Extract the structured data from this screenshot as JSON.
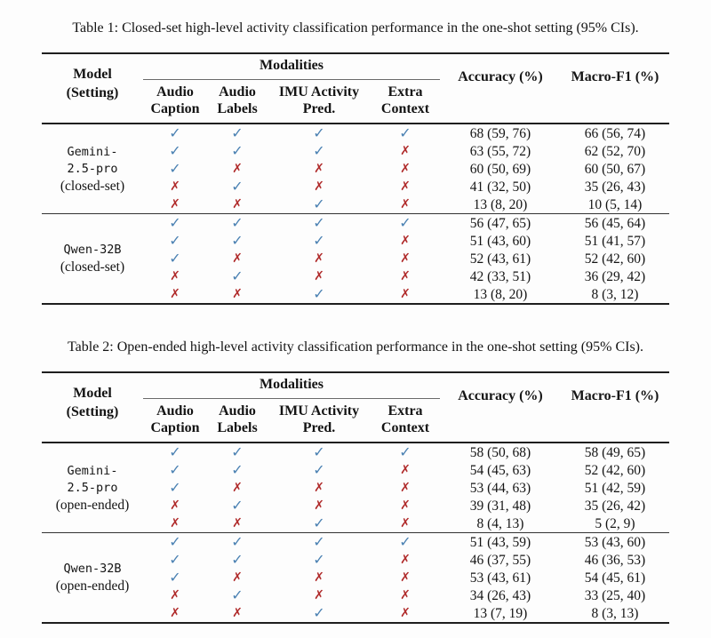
{
  "page": {
    "background": "#fdfdfd",
    "text_color": "#141414"
  },
  "colors": {
    "check": "#4a81b2",
    "cross": "#b02b2b",
    "rule_dark": "#1e1e1e",
    "rule_light": "#6a6a6a"
  },
  "marks": {
    "check": "✓",
    "cross": "✗"
  },
  "header": {
    "model": [
      "Model",
      "(Setting)"
    ],
    "modalities": "Modalities",
    "subcolumns": [
      [
        "Audio",
        "Caption"
      ],
      [
        "Audio",
        "Labels"
      ],
      [
        "IMU Activity",
        "Pred."
      ],
      [
        "Extra",
        "Context"
      ]
    ],
    "accuracy": "Accuracy (%)",
    "macro_f1": "Macro-F1 (%)"
  },
  "tables": [
    {
      "caption": "Table 1: Closed-set high-level activity classification performance in the one-shot setting (95% CIs).",
      "groups": [
        {
          "model_lines": [
            "Gemini-",
            "2.5-pro"
          ],
          "setting": "(closed-set)",
          "rows": [
            {
              "modalities": [
                true,
                true,
                true,
                true
              ],
              "accuracy": "68 (59, 76)",
              "macro_f1": "66 (56, 74)"
            },
            {
              "modalities": [
                true,
                true,
                true,
                false
              ],
              "accuracy": "63 (55, 72)",
              "macro_f1": "62 (52, 70)"
            },
            {
              "modalities": [
                true,
                false,
                false,
                false
              ],
              "accuracy": "60 (50, 69)",
              "macro_f1": "60 (50, 67)"
            },
            {
              "modalities": [
                false,
                true,
                false,
                false
              ],
              "accuracy": "41 (32, 50)",
              "macro_f1": "35 (26, 43)"
            },
            {
              "modalities": [
                false,
                false,
                true,
                false
              ],
              "accuracy": "13 (8, 20)",
              "macro_f1": "10 (5, 14)"
            }
          ]
        },
        {
          "model_lines": [
            "Qwen-32B"
          ],
          "setting": "(closed-set)",
          "rows": [
            {
              "modalities": [
                true,
                true,
                true,
                true
              ],
              "accuracy": "56 (47, 65)",
              "macro_f1": "56 (45, 64)"
            },
            {
              "modalities": [
                true,
                true,
                true,
                false
              ],
              "accuracy": "51 (43, 60)",
              "macro_f1": "51 (41, 57)"
            },
            {
              "modalities": [
                true,
                false,
                false,
                false
              ],
              "accuracy": "52 (43, 61)",
              "macro_f1": "52 (42, 60)"
            },
            {
              "modalities": [
                false,
                true,
                false,
                false
              ],
              "accuracy": "42 (33, 51)",
              "macro_f1": "36 (29, 42)"
            },
            {
              "modalities": [
                false,
                false,
                true,
                false
              ],
              "accuracy": "13 (8, 20)",
              "macro_f1": "8 (3, 12)"
            }
          ]
        }
      ]
    },
    {
      "caption": "Table 2: Open-ended high-level activity classification performance in the one-shot setting (95% CIs).",
      "groups": [
        {
          "model_lines": [
            "Gemini-",
            "2.5-pro"
          ],
          "setting": "(open-ended)",
          "rows": [
            {
              "modalities": [
                true,
                true,
                true,
                true
              ],
              "accuracy": "58 (50, 68)",
              "macro_f1": "58 (49, 65)"
            },
            {
              "modalities": [
                true,
                true,
                true,
                false
              ],
              "accuracy": "54 (45, 63)",
              "macro_f1": "52 (42, 60)"
            },
            {
              "modalities": [
                true,
                false,
                false,
                false
              ],
              "accuracy": "53 (44, 63)",
              "macro_f1": "51 (42, 59)"
            },
            {
              "modalities": [
                false,
                true,
                false,
                false
              ],
              "accuracy": "39 (31, 48)",
              "macro_f1": "35 (26, 42)"
            },
            {
              "modalities": [
                false,
                false,
                true,
                false
              ],
              "accuracy": "8 (4, 13)",
              "macro_f1": "5 (2, 9)"
            }
          ]
        },
        {
          "model_lines": [
            "Qwen-32B"
          ],
          "setting": "(open-ended)",
          "rows": [
            {
              "modalities": [
                true,
                true,
                true,
                true
              ],
              "accuracy": "51 (43, 59)",
              "macro_f1": "53 (43, 60)"
            },
            {
              "modalities": [
                true,
                true,
                true,
                false
              ],
              "accuracy": "46 (37, 55)",
              "macro_f1": "46 (36, 53)"
            },
            {
              "modalities": [
                true,
                false,
                false,
                false
              ],
              "accuracy": "53 (43, 61)",
              "macro_f1": "54 (45, 61)"
            },
            {
              "modalities": [
                false,
                true,
                false,
                false
              ],
              "accuracy": "34 (26, 43)",
              "macro_f1": "33 (25, 40)"
            },
            {
              "modalities": [
                false,
                false,
                true,
                false
              ],
              "accuracy": "13 (7, 19)",
              "macro_f1": "8 (3, 13)"
            }
          ]
        }
      ]
    }
  ]
}
